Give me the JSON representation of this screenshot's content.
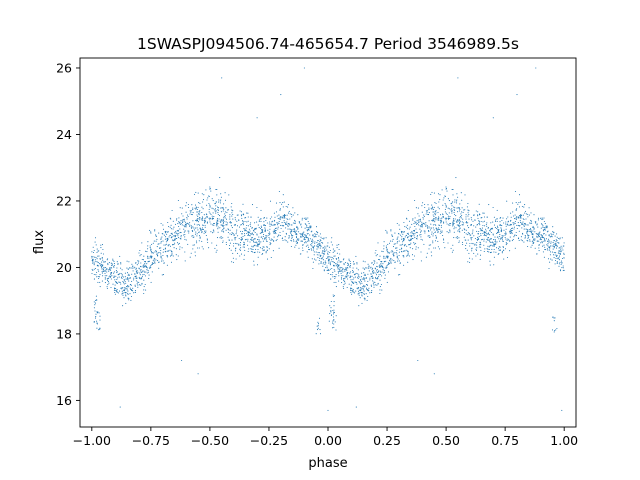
{
  "chart_data": {
    "type": "scatter",
    "title": "1SWASPJ094506.74-465654.7 Period 3546989.5s",
    "xlabel": "phase",
    "ylabel": "flux",
    "xlim": [
      -1.05,
      1.05
    ],
    "ylim": [
      15.2,
      26.3
    ],
    "xticks": [
      -1.0,
      -0.75,
      -0.5,
      -0.25,
      0.0,
      0.25,
      0.5,
      0.75,
      1.0
    ],
    "xtick_labels": [
      "−1.00",
      "−0.75",
      "−0.50",
      "−0.25",
      "0.00",
      "0.25",
      "0.50",
      "0.75",
      "1.00"
    ],
    "yticks": [
      16,
      18,
      20,
      22,
      24,
      26
    ],
    "ytick_labels": [
      "16",
      "18",
      "20",
      "22",
      "24",
      "26"
    ],
    "grid": false,
    "marker_color": "#1f77b4",
    "phase_range": [
      -1.0,
      1.0
    ],
    "profile_phase": [
      0.0,
      0.05,
      0.1,
      0.15,
      0.2,
      0.25,
      0.3,
      0.35,
      0.4,
      0.45,
      0.5,
      0.55,
      0.6,
      0.65,
      0.7,
      0.75,
      0.8,
      0.85,
      0.9,
      0.95,
      1.0
    ],
    "profile_flux": [
      20.3,
      20.0,
      19.7,
      19.5,
      19.8,
      20.3,
      20.7,
      20.9,
      21.2,
      21.4,
      21.6,
      21.5,
      21.1,
      21.0,
      20.9,
      21.0,
      21.4,
      21.2,
      21.0,
      20.7,
      20.3
    ],
    "profile_scatter": [
      0.5,
      0.5,
      0.5,
      0.5,
      0.6,
      0.6,
      0.7,
      0.7,
      0.7,
      0.8,
      0.8,
      0.8,
      0.7,
      0.7,
      0.7,
      0.6,
      0.6,
      0.5,
      0.5,
      0.5,
      0.5
    ],
    "dip_points": [
      {
        "x": -0.985,
        "y": 18.6
      },
      {
        "x": -0.98,
        "y": 18.9
      },
      {
        "x": -0.975,
        "y": 18.4
      },
      {
        "x": 0.015,
        "y": 18.6
      },
      {
        "x": 0.02,
        "y": 18.9
      },
      {
        "x": 0.025,
        "y": 18.4
      },
      {
        "x": -0.04,
        "y": 18.3
      },
      {
        "x": 0.96,
        "y": 18.3
      }
    ],
    "outliers": [
      {
        "x": -0.88,
        "y": 15.8
      },
      {
        "x": 0.12,
        "y": 15.8
      },
      {
        "x": -0.45,
        "y": 25.7
      },
      {
        "x": 0.55,
        "y": 25.7
      },
      {
        "x": -0.1,
        "y": 26.0
      },
      {
        "x": 0.88,
        "y": 26.0
      },
      {
        "x": -0.3,
        "y": 24.5
      },
      {
        "x": 0.7,
        "y": 24.5
      },
      {
        "x": -0.55,
        "y": 16.8
      },
      {
        "x": 0.45,
        "y": 16.8
      },
      {
        "x": 0.0,
        "y": 15.7
      },
      {
        "x": 0.99,
        "y": 15.7
      },
      {
        "x": -0.2,
        "y": 25.2
      },
      {
        "x": 0.8,
        "y": 25.2
      },
      {
        "x": -0.62,
        "y": 17.2
      },
      {
        "x": 0.38,
        "y": 17.2
      }
    ]
  }
}
